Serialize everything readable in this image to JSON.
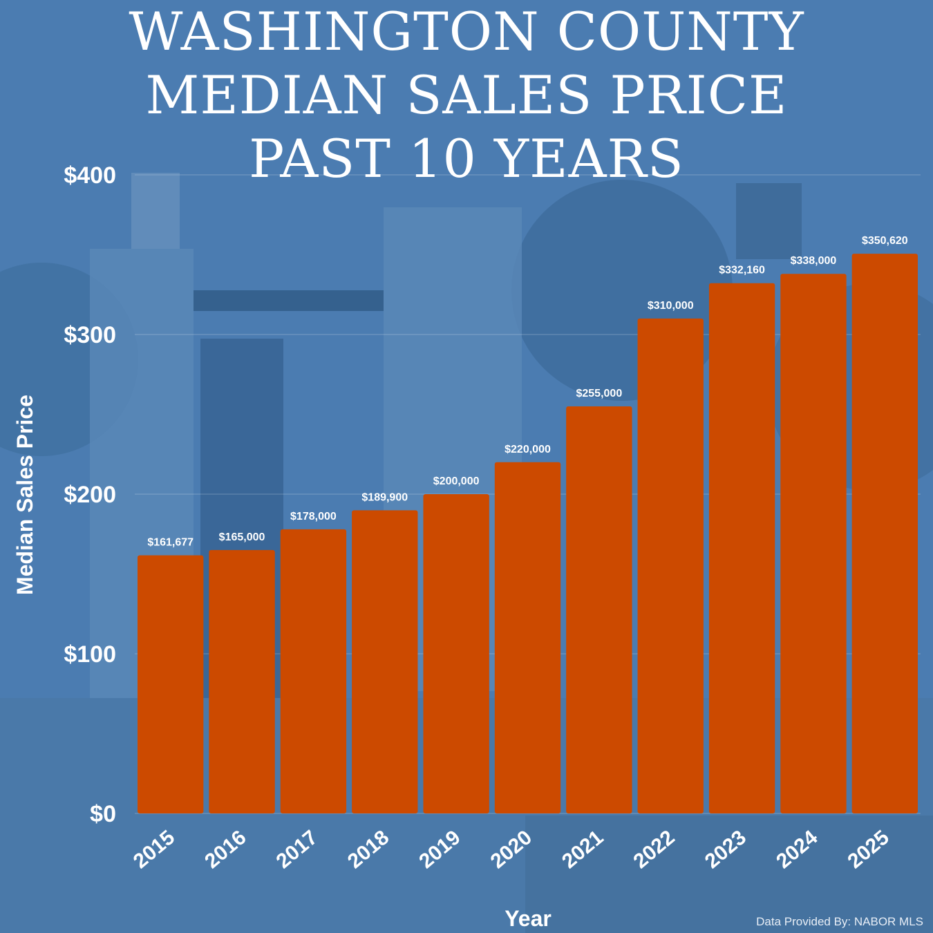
{
  "title_lines": [
    "WASHINGTON COUNTY",
    "MEDIAN SALES PRICE",
    "PAST 10 YEARS"
  ],
  "source": "Data Provided By: NABOR MLS",
  "colors": {
    "background": "#4a7bb0",
    "bar": "#cc4a00",
    "text": "#ffffff"
  },
  "chart_data": {
    "type": "bar",
    "title": "WASHINGTON COUNTY MEDIAN SALES PRICE PAST 10 YEARS",
    "xlabel": "Year",
    "ylabel": "Median Sales Price",
    "categories": [
      "2015",
      "2016",
      "2017",
      "2018",
      "2019",
      "2020",
      "2021",
      "2022",
      "2023",
      "2024",
      "2025"
    ],
    "values": [
      161677,
      165000,
      178000,
      189900,
      200000,
      220000,
      255000,
      310000,
      332160,
      338000,
      350620
    ],
    "data_labels": [
      "$161,677",
      "$165,000",
      "$178,000",
      "$189,900",
      "$200,000",
      "$220,000",
      "$255,000",
      "$310,000",
      "$332,160",
      "$338,000",
      "$350,620"
    ],
    "ylim": [
      0,
      400000
    ],
    "yticks": [
      0,
      100000,
      200000,
      300000,
      400000
    ],
    "ytick_labels": [
      "$0",
      "$100",
      "$200",
      "$300",
      "$400"
    ],
    "grid": true,
    "legend": "none"
  }
}
